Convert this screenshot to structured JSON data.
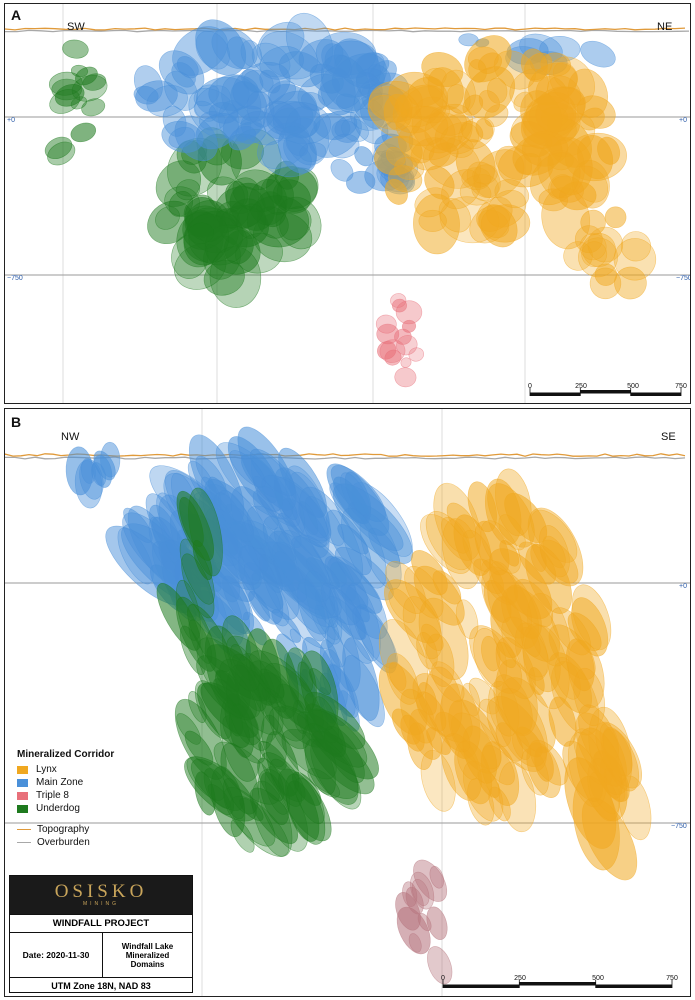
{
  "panel_a": {
    "letter": "A",
    "dir_left": "SW",
    "dir_right": "NE",
    "elev_labels": [
      "+0",
      "−750"
    ],
    "scale_labels": [
      "0",
      "250",
      "500",
      "750"
    ]
  },
  "panel_b": {
    "letter": "B",
    "dir_left": "NW",
    "dir_right": "SE",
    "elev_labels": [
      "+0",
      "−750"
    ],
    "scale_labels": [
      "0",
      "250",
      "500",
      "750"
    ]
  },
  "legend": {
    "title": "Mineralized Corridor",
    "items": [
      {
        "label": "Lynx",
        "color": "#f0a820"
      },
      {
        "label": "Main Zone",
        "color": "#4a90d9"
      },
      {
        "label": "Triple 8",
        "color": "#e8707a"
      },
      {
        "label": "Underdog",
        "color": "#1e7a1e"
      }
    ],
    "lines": [
      {
        "label": "Topography",
        "color": "#e09a3a"
      },
      {
        "label": "Overburden",
        "color": "#a8a8a8"
      }
    ]
  },
  "title_block": {
    "logo_main": "OSISKO",
    "logo_sub": "MINING",
    "project": "WINDFALL PROJECT",
    "date": "Date: 2020-11-30",
    "description": "Windfall Lake Mineralized Domains",
    "crs": "UTM Zone 18N, NAD 83"
  }
}
